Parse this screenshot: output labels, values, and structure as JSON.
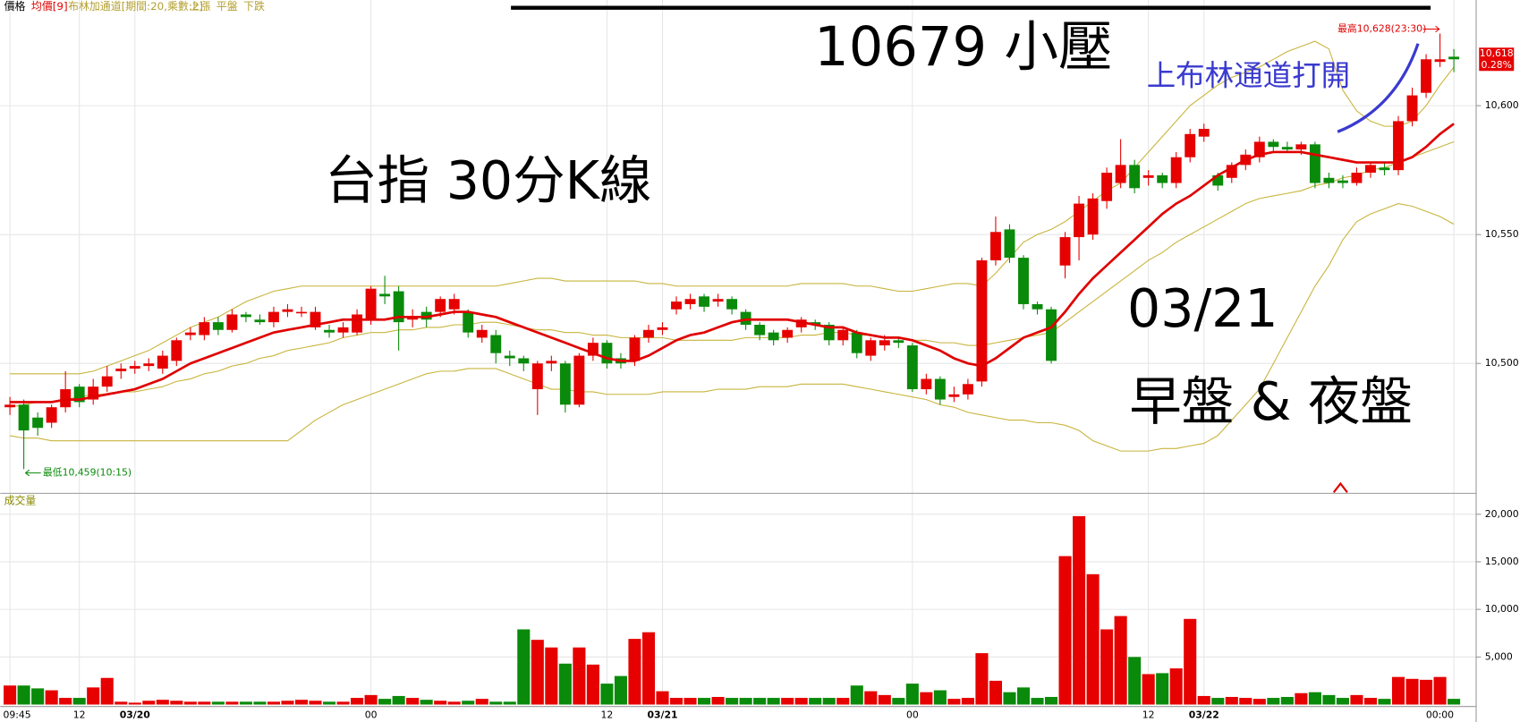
{
  "chart_data": [
    {
      "type": "candlestick",
      "title": "價格",
      "up_color": "#e60000",
      "down_color": "#0a8a0a",
      "categories": [
        "09:45",
        null,
        null,
        null,
        null,
        "12",
        null,
        null,
        null,
        "03/20",
        null,
        null,
        null,
        null,
        null,
        null,
        null,
        null,
        null,
        null,
        null,
        null,
        null,
        null,
        null,
        null,
        "00",
        null,
        null,
        null,
        null,
        null,
        null,
        null,
        null,
        null,
        null,
        null,
        null,
        null,
        null,
        null,
        null,
        "12",
        null,
        null,
        null,
        "03/21",
        null,
        null,
        null,
        null,
        null,
        null,
        null,
        null,
        null,
        null,
        null,
        null,
        null,
        null,
        null,
        null,
        null,
        "00",
        null,
        null,
        null,
        null,
        null,
        null,
        null,
        null,
        null,
        null,
        null,
        null,
        null,
        null,
        null,
        null,
        "12",
        null,
        null,
        null,
        "03/22",
        null,
        null,
        null,
        null,
        null,
        null,
        null,
        null,
        null,
        null,
        null,
        null,
        null,
        null,
        null,
        null,
        null,
        "00:00"
      ],
      "open": [
        10483,
        10484,
        10479,
        10477,
        10483,
        10491,
        10486,
        10491,
        10497,
        10498,
        10499,
        10498,
        10501,
        10511,
        10511,
        10516,
        10513,
        10519,
        10517,
        10516,
        10520,
        10520,
        10514,
        10513,
        10512,
        10512,
        10517,
        10527,
        10528,
        10517,
        10520,
        10520,
        10521,
        10520,
        10510,
        10511,
        10503,
        10502,
        10490,
        10500,
        10500,
        10484,
        10503,
        10508,
        10502,
        10501,
        10510,
        10513,
        10521,
        10523,
        10526,
        10524,
        10525,
        10520,
        10515,
        10512,
        10510,
        10514,
        10516,
        10515,
        10509,
        10512,
        10503,
        10507,
        10509,
        10507,
        10490,
        10494,
        10487,
        10488,
        10493,
        10540,
        10552,
        10541,
        10523,
        10521,
        10538,
        10549,
        10550,
        10563,
        10570,
        10577,
        10572,
        10573,
        10570,
        10580,
        10588,
        10573,
        10572,
        10577,
        10580,
        10586,
        10584,
        10583,
        10585,
        10572,
        10571,
        10570,
        10574,
        10576,
        10575,
        10594,
        10605,
        10617,
        10619
      ],
      "high": [
        10487,
        10486,
        10481,
        10484,
        10497,
        10492,
        10494,
        10499,
        10500,
        10501,
        10502,
        10505,
        10510,
        10514,
        10518,
        10518,
        10521,
        10520,
        10519,
        10522,
        10523,
        10522,
        10522,
        10515,
        10516,
        10521,
        10530,
        10534,
        10530,
        10521,
        10522,
        10526,
        10527,
        10521,
        10515,
        10513,
        10505,
        10503,
        10501,
        10503,
        10501,
        10504,
        10510,
        10509,
        10504,
        10511,
        10515,
        10516,
        10526,
        10527,
        10527,
        10527,
        10526,
        10521,
        10516,
        10513,
        10514,
        10518,
        10517,
        10516,
        10514,
        10513,
        10510,
        10511,
        10510,
        10508,
        10496,
        10495,
        10491,
        10494,
        10541,
        10557,
        10554,
        10542,
        10524,
        10522,
        10551,
        10565,
        10566,
        10576,
        10587,
        10579,
        10575,
        10574,
        10582,
        10591,
        10593,
        10574,
        10578,
        10583,
        10588,
        10587,
        10586,
        10586,
        10586,
        10574,
        10573,
        10576,
        10578,
        10578,
        10596,
        10607,
        10620,
        10628,
        10622
      ],
      "low": [
        10480,
        10459,
        10472,
        10475,
        10481,
        10483,
        10484,
        10489,
        10494,
        10496,
        10497,
        10496,
        10499,
        10509,
        10509,
        10511,
        10512,
        10516,
        10515,
        10514,
        10518,
        10518,
        10513,
        10510,
        10510,
        10511,
        10515,
        10523,
        10505,
        10514,
        10514,
        10518,
        10519,
        10510,
        10508,
        10500,
        10499,
        10497,
        10480,
        10497,
        10481,
        10483,
        10501,
        10498,
        10498,
        10499,
        10508,
        10511,
        10519,
        10521,
        10520,
        10522,
        10519,
        10513,
        10509,
        10507,
        10508,
        10512,
        10513,
        10507,
        10507,
        10502,
        10501,
        10505,
        10506,
        10489,
        10488,
        10484,
        10485,
        10486,
        10491,
        10538,
        10539,
        10521,
        10519,
        10500,
        10533,
        10540,
        10548,
        10560,
        10568,
        10566,
        10569,
        10568,
        10568,
        10578,
        10586,
        10567,
        10570,
        10575,
        10578,
        10582,
        10582,
        10581,
        10568,
        10568,
        10568,
        10569,
        10572,
        10573,
        10573,
        10592,
        10603,
        10615,
        10613
      ],
      "close": [
        10484,
        10474,
        10475,
        10483,
        10490,
        10485,
        10491,
        10495,
        10498,
        10499,
        10500,
        10503,
        10509,
        10512,
        10516,
        10513,
        10519,
        10518,
        10516,
        10520,
        10521,
        10520,
        10520,
        10512,
        10514,
        10519,
        10529,
        10526,
        10516,
        10518,
        10517,
        10525,
        10525,
        10512,
        10513,
        10504,
        10502,
        10500,
        10500,
        10501,
        10484,
        10503,
        10508,
        10500,
        10500,
        10510,
        10513,
        10514,
        10524,
        10525,
        10522,
        10525,
        10521,
        10515,
        10511,
        10509,
        10513,
        10517,
        10515,
        10509,
        10513,
        10504,
        10509,
        10509,
        10508,
        10490,
        10494,
        10486,
        10488,
        10492,
        10540,
        10551,
        10541,
        10523,
        10521,
        10501,
        10549,
        10562,
        10564,
        10574,
        10577,
        10568,
        10573,
        10570,
        10580,
        10589,
        10591,
        10569,
        10577,
        10581,
        10586,
        10584,
        10583,
        10585,
        10570,
        10570,
        10570,
        10574,
        10577,
        10575,
        10594,
        10604,
        10618,
        10618,
        10618
      ],
      "bands_label": "布林加通道[期間:20,乘數:2]",
      "lines": [
        {
          "name": "均價[9]",
          "color": "#e00000",
          "values": [
            10485,
            10485,
            10485,
            10485,
            10486,
            10486,
            10487,
            10488,
            10489,
            10490,
            10492,
            10494,
            10497,
            10500,
            10502,
            10504,
            10506,
            10508,
            10510,
            10512,
            10513,
            10514,
            10515,
            10516,
            10517,
            10517,
            10517,
            10517,
            10518,
            10518,
            10518,
            10519,
            10520,
            10520,
            10519,
            10518,
            10516,
            10514,
            10512,
            10510,
            10508,
            10506,
            10504,
            10502,
            10501,
            10501,
            10503,
            10506,
            10509,
            10511,
            10512,
            10514,
            10516,
            10517,
            10517,
            10517,
            10517,
            10516,
            10515,
            10514,
            10514,
            10512,
            10511,
            10510,
            10510,
            10509,
            10507,
            10505,
            10502,
            10500,
            10499,
            10502,
            10506,
            10510,
            10512,
            10514,
            10520,
            10527,
            10533,
            10538,
            10543,
            10548,
            10553,
            10558,
            10562,
            10565,
            10569,
            10573,
            10576,
            10579,
            10581,
            10582,
            10582,
            10582,
            10581,
            10580,
            10579,
            10578,
            10578,
            10578,
            10578,
            10580,
            10584,
            10589,
            10593
          ]
        },
        {
          "name": "上漲",
          "color": "#c8b43c",
          "values": [
            10496,
            10496,
            10496,
            10496,
            10496,
            10496,
            10497,
            10499,
            10501,
            10503,
            10505,
            10508,
            10511,
            10514,
            10516,
            10518,
            10521,
            10524,
            10526,
            10528,
            10529,
            10530,
            10530,
            10530,
            10530,
            10530,
            10530,
            10530,
            10530,
            10530,
            10530,
            10530,
            10530,
            10530,
            10530,
            10530,
            10531,
            10532,
            10533,
            10533,
            10532,
            10532,
            10532,
            10532,
            10532,
            10532,
            10531,
            10531,
            10530,
            10530,
            10530,
            10530,
            10530,
            10530,
            10530,
            10530,
            10530,
            10531,
            10531,
            10531,
            10531,
            10530,
            10530,
            10529,
            10528,
            10528,
            10529,
            10530,
            10531,
            10531,
            10530,
            10535,
            10541,
            10547,
            10550,
            10552,
            10555,
            10559,
            10563,
            10567,
            10570,
            10576,
            10582,
            10588,
            10594,
            10600,
            10604,
            10608,
            10611,
            10613,
            10615,
            10618,
            10621,
            10623,
            10625,
            10622,
            10606,
            10598,
            10594,
            10592,
            10592,
            10594,
            10600,
            10608,
            10615
          ]
        },
        {
          "name": "平盤",
          "color": "#c8b43c",
          "values": [
            10483,
            10484,
            10485,
            10485,
            10486,
            10487,
            10488,
            10488,
            10489,
            10489,
            10490,
            10491,
            10493,
            10494,
            10496,
            10497,
            10499,
            10500,
            10502,
            10503,
            10505,
            10506,
            10507,
            10508,
            10510,
            10511,
            10512,
            10512,
            10513,
            10513,
            10514,
            10514,
            10515,
            10515,
            10516,
            10516,
            10515,
            10514,
            10513,
            10513,
            10512,
            10512,
            10511,
            10511,
            10510,
            10510,
            10510,
            10510,
            10509,
            10509,
            10509,
            10509,
            10509,
            10510,
            10510,
            10510,
            10510,
            10511,
            10511,
            10512,
            10512,
            10511,
            10511,
            10510,
            10510,
            10509,
            10509,
            10508,
            10508,
            10507,
            10507,
            10508,
            10509,
            10510,
            10511,
            10512,
            10516,
            10520,
            10524,
            10528,
            10532,
            10536,
            10540,
            10543,
            10547,
            10550,
            10553,
            10556,
            10559,
            10562,
            10564,
            10565,
            10566,
            10567,
            10569,
            10570,
            10572,
            10573,
            10575,
            10576,
            10578,
            10580,
            10582,
            10584,
            10586
          ]
        },
        {
          "name": "下跌",
          "color": "#c8b43c",
          "values": [
            10472,
            10471,
            10471,
            10470,
            10470,
            10470,
            10470,
            10470,
            10470,
            10470,
            10470,
            10470,
            10470,
            10470,
            10470,
            10470,
            10470,
            10470,
            10470,
            10470,
            10470,
            10474,
            10478,
            10481,
            10484,
            10486,
            10488,
            10490,
            10492,
            10494,
            10496,
            10497,
            10497,
            10498,
            10498,
            10498,
            10496,
            10494,
            10492,
            10490,
            10490,
            10489,
            10489,
            10488,
            10488,
            10488,
            10488,
            10489,
            10489,
            10489,
            10489,
            10490,
            10490,
            10490,
            10491,
            10491,
            10491,
            10492,
            10492,
            10492,
            10492,
            10491,
            10490,
            10489,
            10488,
            10487,
            10486,
            10484,
            10483,
            10481,
            10480,
            10479,
            10478,
            10478,
            10477,
            10477,
            10476,
            10474,
            10470,
            10468,
            10466,
            10466,
            10466,
            10467,
            10467,
            10468,
            10469,
            10472,
            10478,
            10484,
            10490,
            10500,
            10510,
            10520,
            10530,
            10538,
            10548,
            10555,
            10558,
            10560,
            10562,
            10561,
            10559,
            10557,
            10554
          ]
        }
      ],
      "ylim": [
        10450,
        10641
      ],
      "yticks": [
        {
          "value": 10500,
          "label": "10,500"
        },
        {
          "value": 10550,
          "label": "10,550"
        },
        {
          "value": 10600,
          "label": "10,600"
        }
      ],
      "grid": true,
      "last": {
        "value": 10618,
        "label": "10,618"
      },
      "change": {
        "value": 0.28,
        "label": "0.28%"
      },
      "low_label": "最低10,459(10:15)",
      "high_label": "最高10,628(23:30)",
      "annotations": [
        {
          "text": "10679 小壓",
          "color": "#000000"
        },
        {
          "text": "上布林通道打開",
          "color": "#3a3ad0"
        },
        {
          "text": "台指 30分K線",
          "color": "#000000"
        },
        {
          "text": "03/21",
          "color": "#000000"
        },
        {
          "text": "早盤 & 夜盤",
          "color": "#000000"
        }
      ]
    },
    {
      "type": "bar",
      "title": "成交量",
      "values": [
        2000,
        2000,
        1700,
        1500,
        700,
        700,
        1800,
        2800,
        300,
        200,
        400,
        500,
        400,
        300,
        300,
        300,
        300,
        300,
        300,
        300,
        400,
        500,
        400,
        300,
        300,
        700,
        1000,
        600,
        900,
        700,
        500,
        400,
        300,
        400,
        600,
        300,
        300,
        7900,
        6800,
        6000,
        4300,
        6000,
        4200,
        2200,
        3000,
        6900,
        7600,
        1400,
        700,
        700,
        700,
        800,
        700,
        700,
        700,
        700,
        700,
        700,
        700,
        700,
        700,
        2000,
        1400,
        1000,
        700,
        2200,
        1300,
        1500,
        600,
        700,
        5400,
        2500,
        1300,
        1800,
        700,
        800,
        15600,
        19800,
        13700,
        7900,
        9300,
        5000,
        3200,
        3300,
        3800,
        9000,
        900,
        700,
        800,
        700,
        600,
        700,
        800,
        1200,
        1300,
        1000,
        700,
        1000,
        700,
        600,
        2900,
        2700,
        2600,
        2900,
        600
      ],
      "ylim": [
        0,
        22100
      ],
      "yticks": [
        {
          "value": 5000,
          "label": "5,000"
        },
        {
          "value": 10000,
          "label": "10,000"
        },
        {
          "value": 15000,
          "label": "15,000"
        },
        {
          "value": 20000,
          "label": "20,000"
        }
      ],
      "grid": true
    }
  ]
}
